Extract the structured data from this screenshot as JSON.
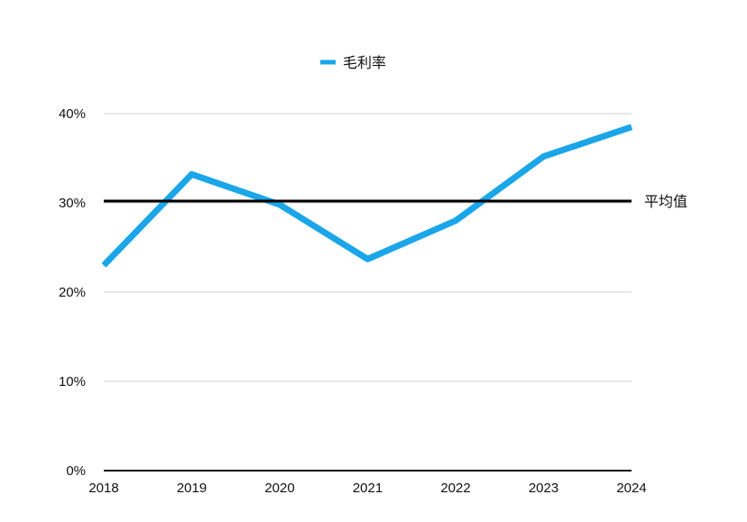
{
  "chart_data": {
    "type": "line",
    "categories": [
      "2018",
      "2019",
      "2020",
      "2021",
      "2022",
      "2023",
      "2024"
    ],
    "series": [
      {
        "name": "毛利率",
        "values": [
          23.0,
          33.2,
          29.8,
          23.7,
          28.0,
          35.2,
          38.5
        ],
        "color": "#1aa6e8"
      }
    ],
    "ylim": [
      0,
      40
    ],
    "yticks": [
      0,
      10,
      20,
      30,
      40
    ],
    "ytick_labels": [
      "0%",
      "10%",
      "20%",
      "30%",
      "40%"
    ],
    "reference_line": {
      "label": "平均值",
      "value": 30.2,
      "color": "#000000"
    },
    "grid": true,
    "legend_position": "top-center"
  }
}
